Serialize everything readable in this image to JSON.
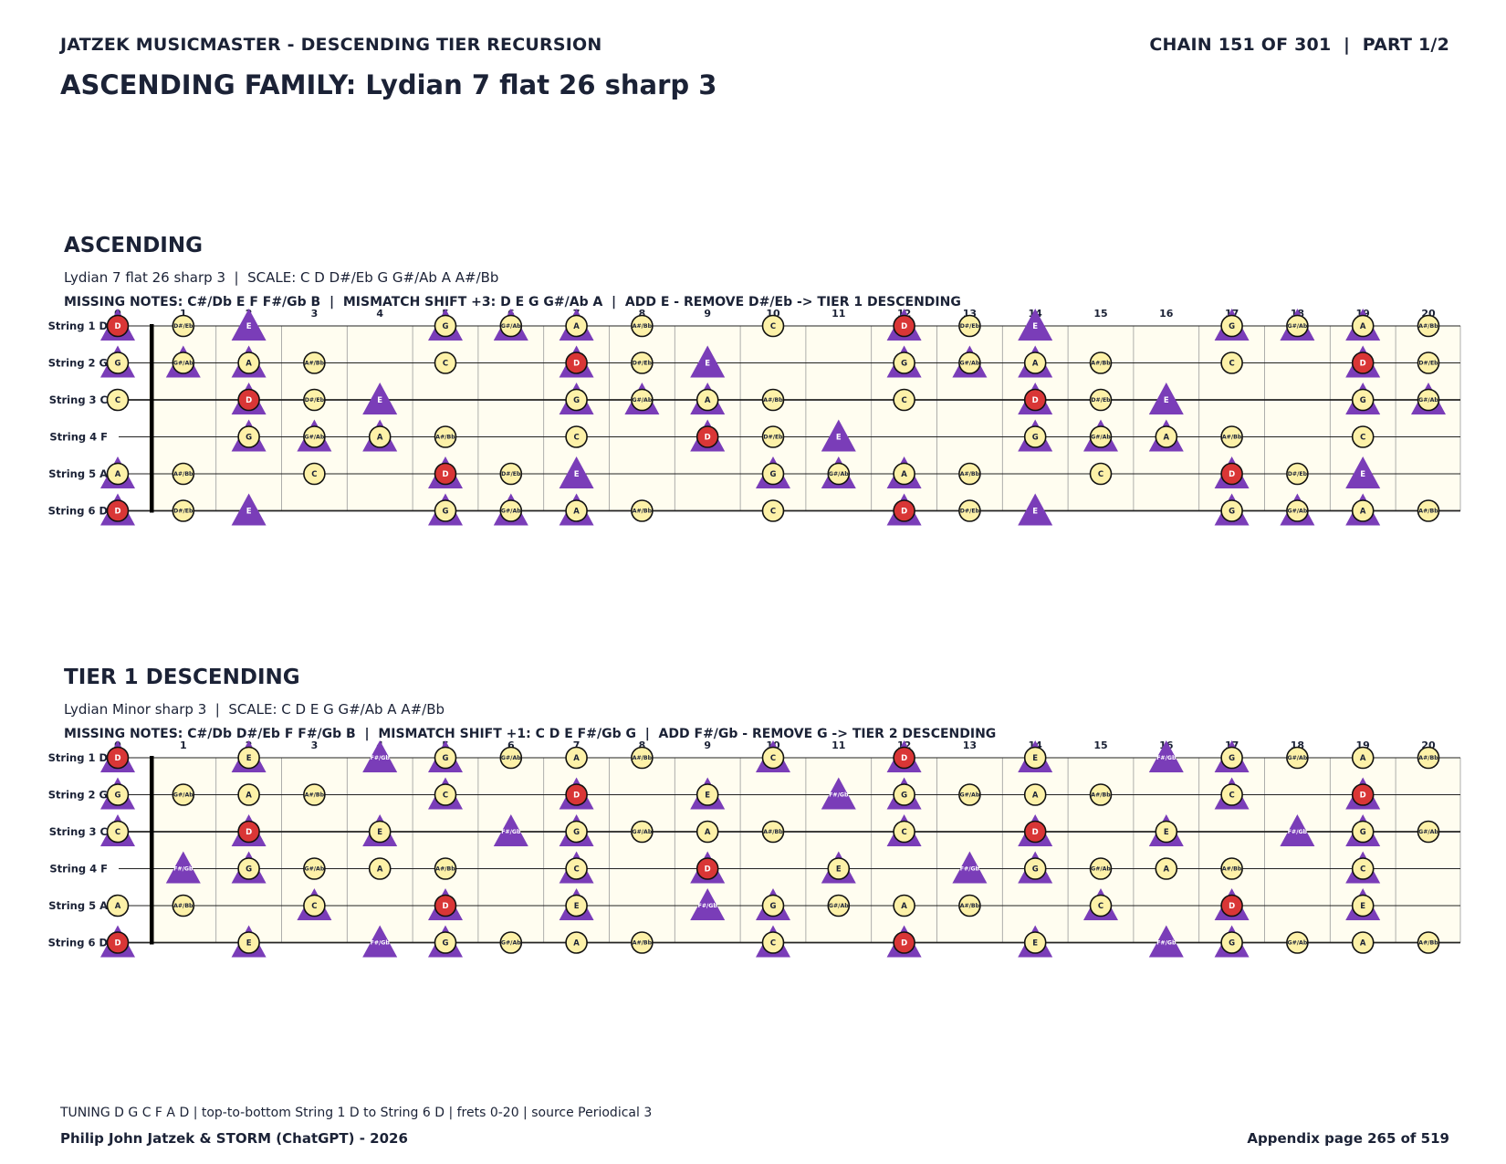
{
  "header": {
    "left": "JATZEK MUSICMASTER - DESCENDING TIER RECURSION",
    "right": "CHAIN 151 OF 301  |  PART 1/2",
    "title": "ASCENDING FAMILY: Lydian 7 flat 26 sharp 3"
  },
  "sections": [
    {
      "title": "ASCENDING",
      "subtitle": "Lydian 7 flat 26 sharp 3  |  SCALE: C D D#/Eb G G#/Ab A A#/Bb",
      "missing": "MISSING NOTES: C#/Db E F F#/Gb B  |  MISMATCH SHIFT +3: D E G G#/Ab A  |  ADD E - REMOVE D#/Eb -> TIER 1 DESCENDING",
      "scale": [
        "C",
        "D",
        "D#/Eb",
        "G",
        "G#/Ab",
        "A",
        "A#/Bb"
      ],
      "add_note": "E",
      "triangles": [
        "D",
        "E",
        "G",
        "G#/Ab",
        "A"
      ]
    },
    {
      "title": "TIER 1 DESCENDING",
      "subtitle": "Lydian Minor sharp 3  |  SCALE: C D E G G#/Ab A A#/Bb",
      "missing": "MISSING NOTES: C#/Db D#/Eb F F#/Gb B  |  MISMATCH SHIFT +1: C D E F#/Gb G  |  ADD F#/Gb - REMOVE G -> TIER 2 DESCENDING",
      "scale": [
        "C",
        "D",
        "E",
        "G",
        "G#/Ab",
        "A",
        "A#/Bb"
      ],
      "add_note": "F#/Gb",
      "triangles": [
        "C",
        "D",
        "E",
        "F#/Gb",
        "G"
      ]
    }
  ],
  "fretboard": {
    "strings": [
      {
        "label": "String 1 D",
        "note": "D"
      },
      {
        "label": "String 2 G",
        "note": "G"
      },
      {
        "label": "String 3 C",
        "note": "C"
      },
      {
        "label": "String 4 F",
        "note": "F"
      },
      {
        "label": "String 5 A",
        "note": "A"
      },
      {
        "label": "String 6 D",
        "note": "D"
      }
    ],
    "frets": 20,
    "root": "D",
    "note_names": [
      "C",
      "C#/Db",
      "D",
      "D#/Eb",
      "E",
      "F",
      "F#/Gb",
      "G",
      "G#/Ab",
      "A",
      "A#/Bb",
      "B"
    ]
  },
  "colors": {
    "text": "#1b2236",
    "board": "#fffdf0",
    "note_fill": "#fdf1a8",
    "root_fill": "#d93636",
    "triangle": "#7a3db8"
  },
  "footer": {
    "tuning": "TUNING D G C F A D | top-to-bottom String 1 D to String 6 D | frets 0-20 | source Periodical 3",
    "credit": "Philip John Jatzek & STORM (ChatGPT) - 2026",
    "page": "Appendix page 265 of 519"
  }
}
